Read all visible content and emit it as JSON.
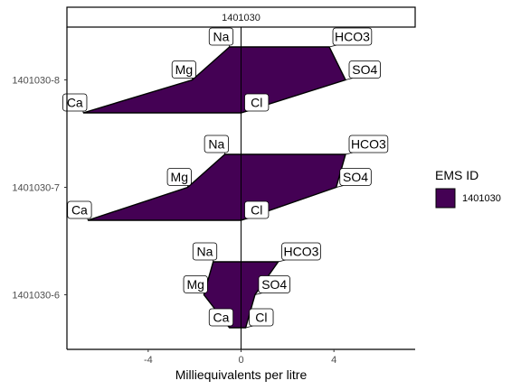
{
  "chart_data": {
    "type": "area",
    "facet": "1401030",
    "xlabel": "Milliequivalents per litre",
    "ylabel": "",
    "xlim": [
      -7.5,
      7.5
    ],
    "xticks": [
      -4,
      0,
      4
    ],
    "xtick_labels": [
      "-4",
      "0",
      "4"
    ],
    "grid": false,
    "legend": {
      "title": "EMS ID",
      "position": "right",
      "entries": [
        {
          "label": "1401030",
          "color": "#440154"
        }
      ]
    },
    "rows": [
      {
        "label": "1401030-8",
        "points": [
          {
            "ion": "Na",
            "x": -0.5
          },
          {
            "ion": "HCO3",
            "x": 3.8
          },
          {
            "ion": "Mg",
            "x": -2.1
          },
          {
            "ion": "SO4",
            "x": 4.5
          },
          {
            "ion": "Ca",
            "x": -6.8
          },
          {
            "ion": "Cl",
            "x": 0.0
          }
        ]
      },
      {
        "label": "1401030-7",
        "points": [
          {
            "ion": "Na",
            "x": -0.7
          },
          {
            "ion": "HCO3",
            "x": 4.5
          },
          {
            "ion": "Mg",
            "x": -2.3
          },
          {
            "ion": "SO4",
            "x": 4.1
          },
          {
            "ion": "Ca",
            "x": -6.6
          },
          {
            "ion": "Cl",
            "x": 0.0
          }
        ]
      },
      {
        "label": "1401030-6",
        "points": [
          {
            "ion": "Na",
            "x": -1.2
          },
          {
            "ion": "HCO3",
            "x": 1.6
          },
          {
            "ion": "Mg",
            "x": -1.6
          },
          {
            "ion": "SO4",
            "x": 0.6
          },
          {
            "ion": "Ca",
            "x": -0.5
          },
          {
            "ion": "Cl",
            "x": 0.2
          }
        ]
      }
    ],
    "colors": {
      "fill": "#440154",
      "outline": "#000000"
    }
  }
}
